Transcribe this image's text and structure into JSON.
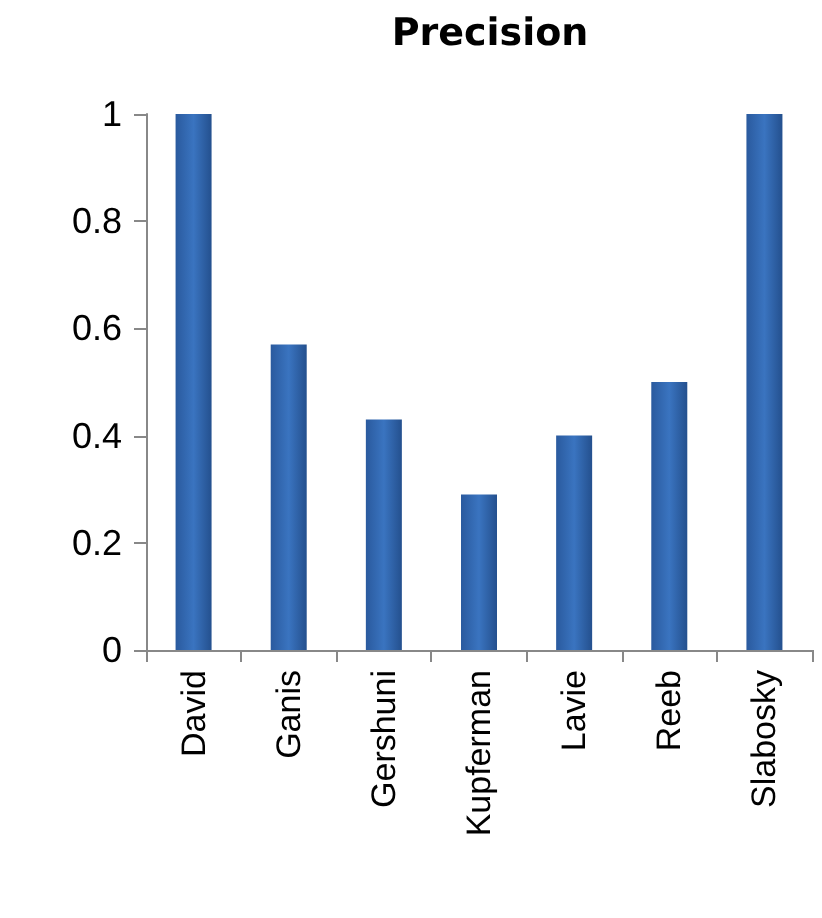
{
  "chart_data": {
    "type": "bar",
    "title": "Precision",
    "categories": [
      "David",
      "Ganis",
      "Gershuni",
      "Kupferman",
      "Lavie",
      "Reeb",
      "Slabosky"
    ],
    "values": [
      1,
      0.57,
      0.43,
      0.29,
      0.4,
      0.5,
      1
    ],
    "color": "#3a74c0",
    "ylim": [
      0,
      1
    ],
    "yticks": [
      0,
      0.2,
      0.4,
      0.6,
      0.8,
      1
    ],
    "grid": false
  }
}
